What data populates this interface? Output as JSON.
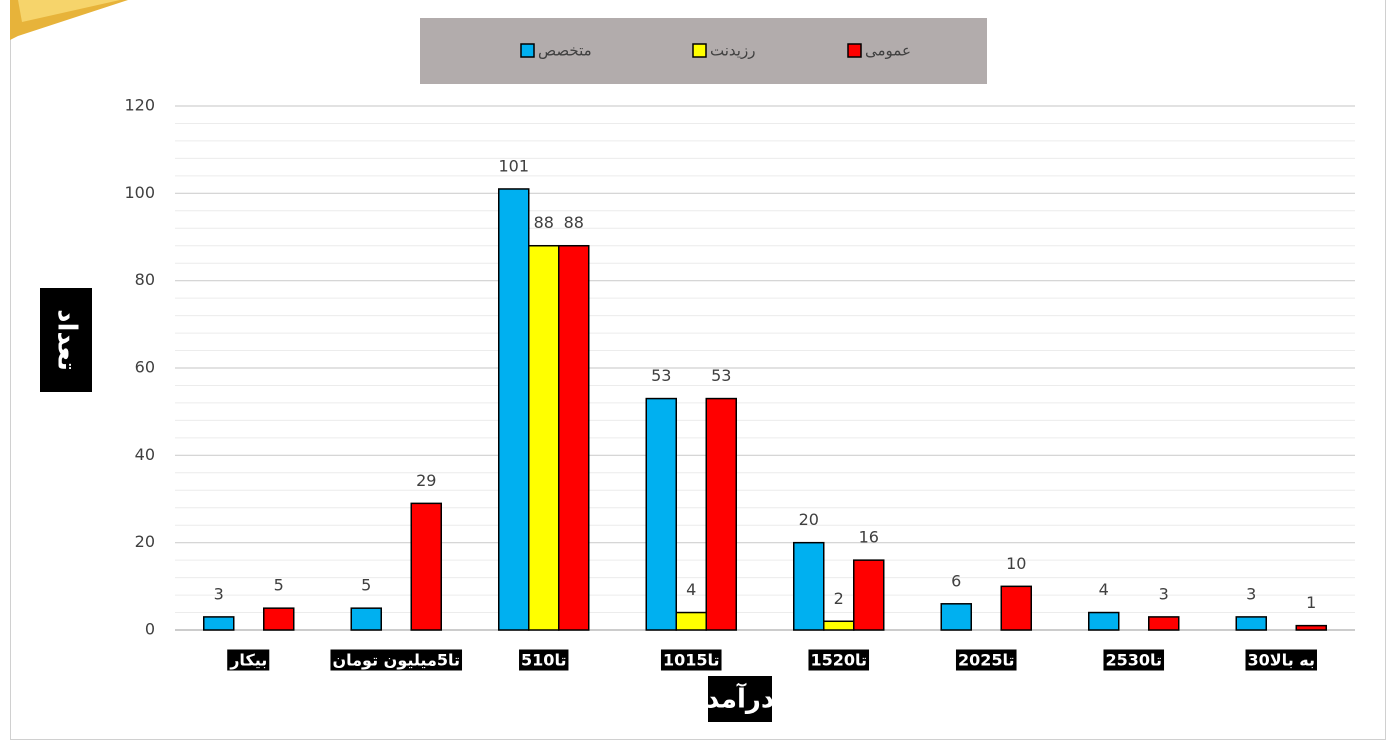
{
  "chart_data": {
    "type": "bar",
    "categories": [
      "بیکار",
      "تا5میلیون تومان",
      "5تا10",
      "10تا15",
      "15تا20",
      "20تا25",
      "25تا30",
      "30به بالا"
    ],
    "series": [
      {
        "name": "متخصص",
        "color": "#00b0f0",
        "values": [
          3,
          5,
          101,
          53,
          20,
          6,
          4,
          3
        ]
      },
      {
        "name": "رزیدنت",
        "color": "#ffff00",
        "values": [
          null,
          null,
          88,
          4,
          2,
          null,
          null,
          null
        ]
      },
      {
        "name": "عمومی",
        "color": "#ff0000",
        "values": [
          5,
          29,
          88,
          53,
          16,
          10,
          3,
          1
        ]
      }
    ],
    "xlabel": "درآمد",
    "ylabel": "تعداد",
    "ylim": [
      0,
      120
    ],
    "yticks": [
      0,
      20,
      40,
      60,
      80,
      100,
      120
    ],
    "grid": true,
    "legend": "top-center"
  }
}
